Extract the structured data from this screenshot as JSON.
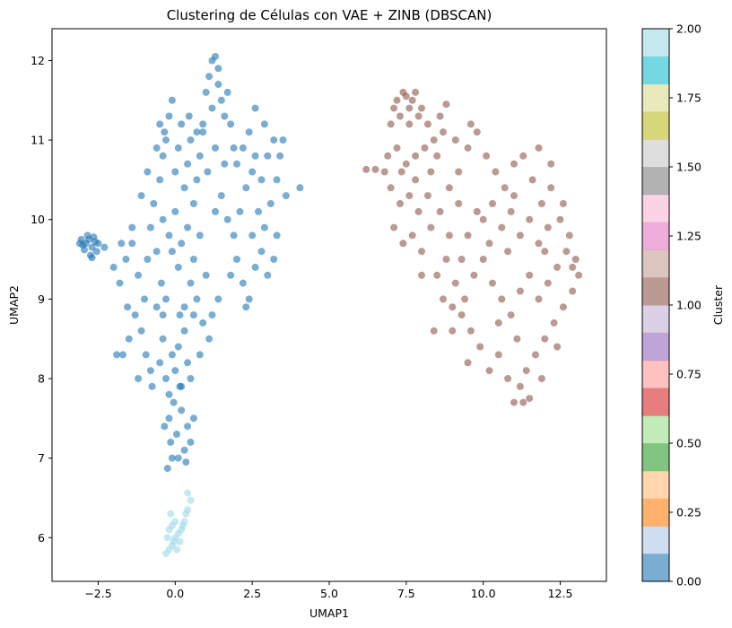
{
  "chart_data": {
    "type": "scatter",
    "title": "Clustering de Células con VAE + ZINB (DBSCAN)",
    "xlabel": "UMAP1",
    "ylabel": "UMAP2",
    "xlim": [
      -4.0,
      14.0
    ],
    "ylim": [
      5.45,
      12.4
    ],
    "x_ticks": [
      -2.5,
      0.0,
      2.5,
      5.0,
      7.5,
      10.0,
      12.5
    ],
    "x_tick_labels": [
      "−2.5",
      "0.0",
      "2.5",
      "5.0",
      "7.5",
      "10.0",
      "12.5"
    ],
    "y_ticks": [
      6,
      7,
      8,
      9,
      10,
      11,
      12
    ],
    "y_tick_labels": [
      "6",
      "7",
      "8",
      "9",
      "10",
      "11",
      "12"
    ],
    "grid": false,
    "colormap": "tab20",
    "colorbar": {
      "label": "Cluster",
      "range": [
        0.0,
        2.0
      ],
      "ticks": [
        0.0,
        0.25,
        0.5,
        0.75,
        1.0,
        1.25,
        1.5,
        1.75,
        2.0
      ],
      "tick_labels": [
        "0.00",
        "0.25",
        "0.50",
        "0.75",
        "1.00",
        "1.25",
        "1.50",
        "1.75",
        "2.00"
      ],
      "colors": [
        "#1f77b4",
        "#aec7e8",
        "#ff7f0e",
        "#ffbb78",
        "#2ca02c",
        "#98df8a",
        "#d62728",
        "#ff9896",
        "#9467bd",
        "#c5b0d5",
        "#8c564b",
        "#c49c94",
        "#e377c2",
        "#f7b6d2",
        "#7f7f7f",
        "#c7c7c7",
        "#bcbd22",
        "#dbdb8d",
        "#17becf",
        "#9edae5"
      ]
    },
    "series": [
      {
        "cluster": 0,
        "color": "#1f77b4",
        "points": [
          [
            -2.9,
            9.7
          ],
          [
            -2.8,
            9.75
          ],
          [
            -2.7,
            9.65
          ],
          [
            -3.0,
            9.68
          ],
          [
            -2.6,
            9.72
          ],
          [
            -2.75,
            9.55
          ],
          [
            -2.85,
            9.8
          ],
          [
            -2.55,
            9.6
          ],
          [
            -3.1,
            9.7
          ],
          [
            -2.65,
            9.78
          ],
          [
            -2.95,
            9.62
          ],
          [
            -2.7,
            9.52
          ],
          [
            -2.5,
            9.7
          ],
          [
            -3.05,
            9.75
          ],
          [
            -2.3,
            9.65
          ],
          [
            -1.8,
            9.2
          ],
          [
            -1.6,
            9.5
          ],
          [
            -1.4,
            9.7
          ],
          [
            -1.2,
            9.3
          ],
          [
            -1.0,
            9.0
          ],
          [
            -0.9,
            9.5
          ],
          [
            -0.8,
            9.9
          ],
          [
            -0.7,
            10.2
          ],
          [
            -0.6,
            9.6
          ],
          [
            -1.3,
            8.8
          ],
          [
            -1.1,
            8.6
          ],
          [
            -0.95,
            8.3
          ],
          [
            -1.7,
            8.3
          ],
          [
            -1.5,
            8.5
          ],
          [
            -1.2,
            8.0
          ],
          [
            -0.5,
            8.2
          ],
          [
            -0.4,
            8.5
          ],
          [
            -0.3,
            8.0
          ],
          [
            -0.2,
            7.8
          ],
          [
            -0.1,
            8.3
          ],
          [
            0.0,
            8.1
          ],
          [
            0.1,
            8.4
          ],
          [
            0.2,
            7.9
          ],
          [
            0.3,
            8.6
          ],
          [
            0.4,
            8.2
          ],
          [
            0.5,
            8.0
          ],
          [
            0.6,
            8.8
          ],
          [
            -0.6,
            8.9
          ],
          [
            -0.45,
            9.2
          ],
          [
            -0.3,
            9.0
          ],
          [
            -0.2,
            7.5
          ],
          [
            -0.15,
            7.2
          ],
          [
            -0.1,
            7.0
          ],
          [
            -0.25,
            6.87
          ],
          [
            0.05,
            7.3
          ],
          [
            0.2,
            7.6
          ],
          [
            0.3,
            7.1
          ],
          [
            0.4,
            7.4
          ],
          [
            0.15,
            7.9
          ],
          [
            -0.05,
            7.7
          ],
          [
            -0.5,
            10.5
          ],
          [
            -0.4,
            10.8
          ],
          [
            -0.3,
            11.0
          ],
          [
            -0.2,
            11.3
          ],
          [
            -0.1,
            11.5
          ],
          [
            0.0,
            10.6
          ],
          [
            0.1,
            10.9
          ],
          [
            0.2,
            11.2
          ],
          [
            0.3,
            10.4
          ],
          [
            0.4,
            10.7
          ],
          [
            0.5,
            11.0
          ],
          [
            0.6,
            10.2
          ],
          [
            0.7,
            10.5
          ],
          [
            0.8,
            10.8
          ],
          [
            0.9,
            11.1
          ],
          [
            -0.4,
            10.0
          ],
          [
            -0.2,
            9.8
          ],
          [
            0.0,
            10.1
          ],
          [
            0.2,
            9.7
          ],
          [
            0.4,
            9.9
          ],
          [
            0.6,
            9.5
          ],
          [
            0.8,
            9.8
          ],
          [
            1.0,
            9.3
          ],
          [
            0.1,
            9.4
          ],
          [
            -0.1,
            9.6
          ],
          [
            0.5,
            9.2
          ],
          [
            0.3,
            8.9
          ],
          [
            0.7,
            9.0
          ],
          [
            0.9,
            8.7
          ],
          [
            1.1,
            8.5
          ],
          [
            1.0,
            11.6
          ],
          [
            1.1,
            11.8
          ],
          [
            1.2,
            12.0
          ],
          [
            1.3,
            12.05
          ],
          [
            1.4,
            11.7
          ],
          [
            1.5,
            11.5
          ],
          [
            1.6,
            11.3
          ],
          [
            1.2,
            11.4
          ],
          [
            0.9,
            11.2
          ],
          [
            1.4,
            11.9
          ],
          [
            1.7,
            11.6
          ],
          [
            1.8,
            11.2
          ],
          [
            1.3,
            10.9
          ],
          [
            1.6,
            10.7
          ],
          [
            1.9,
            10.9
          ],
          [
            1.5,
            10.3
          ],
          [
            1.7,
            10.0
          ],
          [
            1.9,
            9.8
          ],
          [
            2.1,
            10.1
          ],
          [
            2.3,
            10.4
          ],
          [
            2.5,
            10.6
          ],
          [
            2.0,
            10.7
          ],
          [
            2.2,
            10.9
          ],
          [
            2.4,
            11.1
          ],
          [
            2.6,
            10.8
          ],
          [
            2.8,
            10.5
          ],
          [
            3.0,
            10.8
          ],
          [
            3.2,
            11.0
          ],
          [
            2.9,
            11.2
          ],
          [
            2.6,
            11.4
          ],
          [
            1.8,
            9.3
          ],
          [
            2.0,
            9.5
          ],
          [
            2.2,
            9.2
          ],
          [
            2.4,
            9.0
          ],
          [
            2.6,
            9.4
          ],
          [
            2.8,
            9.6
          ],
          [
            3.0,
            9.3
          ],
          [
            3.2,
            9.5
          ],
          [
            2.5,
            9.8
          ],
          [
            2.7,
            10.1
          ],
          [
            2.9,
            9.9
          ],
          [
            3.1,
            10.2
          ],
          [
            3.3,
            10.5
          ],
          [
            3.4,
            10.8
          ],
          [
            3.5,
            11.0
          ],
          [
            4.05,
            10.4
          ],
          [
            3.6,
            10.3
          ],
          [
            3.3,
            9.8
          ],
          [
            2.3,
            8.9
          ],
          [
            1.4,
            9.0
          ],
          [
            1.2,
            8.8
          ],
          [
            0.8,
            8.3
          ],
          [
            0.6,
            7.5
          ],
          [
            0.5,
            7.2
          ],
          [
            0.35,
            6.95
          ],
          [
            0.1,
            7.0
          ],
          [
            -0.35,
            7.4
          ],
          [
            -0.4,
            8.8
          ],
          [
            -0.8,
            8.1
          ],
          [
            -1.9,
            8.3
          ],
          [
            -1.4,
            9.9
          ],
          [
            -1.1,
            10.3
          ],
          [
            -0.9,
            10.6
          ],
          [
            -0.6,
            10.9
          ],
          [
            -0.5,
            11.2
          ],
          [
            -0.35,
            11.1
          ],
          [
            0.45,
            11.3
          ],
          [
            0.7,
            11.1
          ],
          [
            1.05,
            10.6
          ],
          [
            1.3,
            10.1
          ],
          [
            -1.75,
            9.7
          ],
          [
            -2.0,
            9.4
          ],
          [
            -1.55,
            8.9
          ],
          [
            -0.75,
            7.9
          ],
          [
            0.15,
            8.8
          ]
        ]
      },
      {
        "cluster": 1,
        "color": "#8c564b",
        "points": [
          [
            6.2,
            10.63
          ],
          [
            6.5,
            10.63
          ],
          [
            6.8,
            10.6
          ],
          [
            6.9,
            10.8
          ],
          [
            7.0,
            11.2
          ],
          [
            7.1,
            11.4
          ],
          [
            7.2,
            11.5
          ],
          [
            7.3,
            11.3
          ],
          [
            7.4,
            11.6
          ],
          [
            7.5,
            11.55
          ],
          [
            7.6,
            11.4
          ],
          [
            7.7,
            11.5
          ],
          [
            7.8,
            11.6
          ],
          [
            7.9,
            11.3
          ],
          [
            8.0,
            11.4
          ],
          [
            8.2,
            11.2
          ],
          [
            8.4,
            11.0
          ],
          [
            8.6,
            11.3
          ],
          [
            8.8,
            11.45
          ],
          [
            7.2,
            10.9
          ],
          [
            7.5,
            10.7
          ],
          [
            7.8,
            10.8
          ],
          [
            8.1,
            10.9
          ],
          [
            8.3,
            10.6
          ],
          [
            8.5,
            10.8
          ],
          [
            7.0,
            10.4
          ],
          [
            7.3,
            10.2
          ],
          [
            7.6,
            10.3
          ],
          [
            7.9,
            10.1
          ],
          [
            8.2,
            10.3
          ],
          [
            7.1,
            9.9
          ],
          [
            7.4,
            9.7
          ],
          [
            7.7,
            9.8
          ],
          [
            8.0,
            9.6
          ],
          [
            8.3,
            9.9
          ],
          [
            8.6,
            10.1
          ],
          [
            8.9,
            10.4
          ],
          [
            9.2,
            10.6
          ],
          [
            9.5,
            10.9
          ],
          [
            9.8,
            11.1
          ],
          [
            10.1,
            10.8
          ],
          [
            10.4,
            10.6
          ],
          [
            10.7,
            10.4
          ],
          [
            11.0,
            10.7
          ],
          [
            11.3,
            10.8
          ],
          [
            11.6,
            10.5
          ],
          [
            11.9,
            10.2
          ],
          [
            12.2,
            10.4
          ],
          [
            12.5,
            10.0
          ],
          [
            12.8,
            9.8
          ],
          [
            13.0,
            9.5
          ],
          [
            13.1,
            9.3
          ],
          [
            12.9,
            9.1
          ],
          [
            12.6,
            8.9
          ],
          [
            12.3,
            8.7
          ],
          [
            12.0,
            8.5
          ],
          [
            11.7,
            8.3
          ],
          [
            11.4,
            8.1
          ],
          [
            11.2,
            7.9
          ],
          [
            11.0,
            7.7
          ],
          [
            10.8,
            8.0
          ],
          [
            10.5,
            8.3
          ],
          [
            10.2,
            8.1
          ],
          [
            9.9,
            8.4
          ],
          [
            9.6,
            8.6
          ],
          [
            9.3,
            8.8
          ],
          [
            9.0,
            8.6
          ],
          [
            8.7,
            9.0
          ],
          [
            8.5,
            9.3
          ],
          [
            8.8,
            9.5
          ],
          [
            9.1,
            9.2
          ],
          [
            9.4,
            9.0
          ],
          [
            9.7,
            9.3
          ],
          [
            10.0,
            9.5
          ],
          [
            10.3,
            9.2
          ],
          [
            10.6,
            9.0
          ],
          [
            10.9,
            8.8
          ],
          [
            11.2,
            9.1
          ],
          [
            11.5,
            9.3
          ],
          [
            11.8,
            9.0
          ],
          [
            12.1,
            9.2
          ],
          [
            12.4,
            9.4
          ],
          [
            12.7,
            9.6
          ],
          [
            10.0,
            10.0
          ],
          [
            10.3,
            10.2
          ],
          [
            10.6,
            9.9
          ],
          [
            10.9,
            10.1
          ],
          [
            11.2,
            9.8
          ],
          [
            11.5,
            10.0
          ],
          [
            11.8,
            9.7
          ],
          [
            12.1,
            9.9
          ],
          [
            9.5,
            9.8
          ],
          [
            9.8,
            10.1
          ],
          [
            9.2,
            10.2
          ],
          [
            8.9,
            9.8
          ],
          [
            10.5,
            8.7
          ],
          [
            11.1,
            8.5
          ],
          [
            11.9,
            8.0
          ],
          [
            12.4,
            8.4
          ],
          [
            11.5,
            7.75
          ],
          [
            11.3,
            7.7
          ],
          [
            9.5,
            8.2
          ],
          [
            9.0,
            8.9
          ],
          [
            8.4,
            8.6
          ],
          [
            10.2,
            9.7
          ],
          [
            11.0,
            10.3
          ],
          [
            12.6,
            10.2
          ],
          [
            12.2,
            10.7
          ],
          [
            11.8,
            10.9
          ],
          [
            9.6,
            11.2
          ],
          [
            9.1,
            11.0
          ],
          [
            8.7,
            11.1
          ],
          [
            7.6,
            11.2
          ],
          [
            7.35,
            10.6
          ],
          [
            8.0,
            9.3
          ],
          [
            7.8,
            10.5
          ],
          [
            9.3,
            9.5
          ],
          [
            10.8,
            9.6
          ],
          [
            12.0,
            9.6
          ],
          [
            12.9,
            9.4
          ]
        ]
      },
      {
        "cluster": 2,
        "color": "#9edae5",
        "points": [
          [
            -0.3,
            5.8
          ],
          [
            -0.2,
            5.85
          ],
          [
            -0.1,
            5.9
          ],
          [
            0.0,
            6.0
          ],
          [
            0.1,
            6.05
          ],
          [
            0.2,
            6.1
          ],
          [
            0.3,
            6.2
          ],
          [
            0.4,
            6.35
          ],
          [
            0.5,
            6.47
          ],
          [
            0.4,
            6.56
          ],
          [
            -0.2,
            6.1
          ],
          [
            -0.15,
            6.3
          ],
          [
            0.0,
            6.2
          ],
          [
            0.25,
            6.15
          ],
          [
            -0.05,
            5.95
          ],
          [
            0.05,
            5.85
          ],
          [
            -0.25,
            6.0
          ],
          [
            0.15,
            5.95
          ],
          [
            0.35,
            6.3
          ],
          [
            -0.1,
            6.15
          ]
        ]
      }
    ]
  }
}
